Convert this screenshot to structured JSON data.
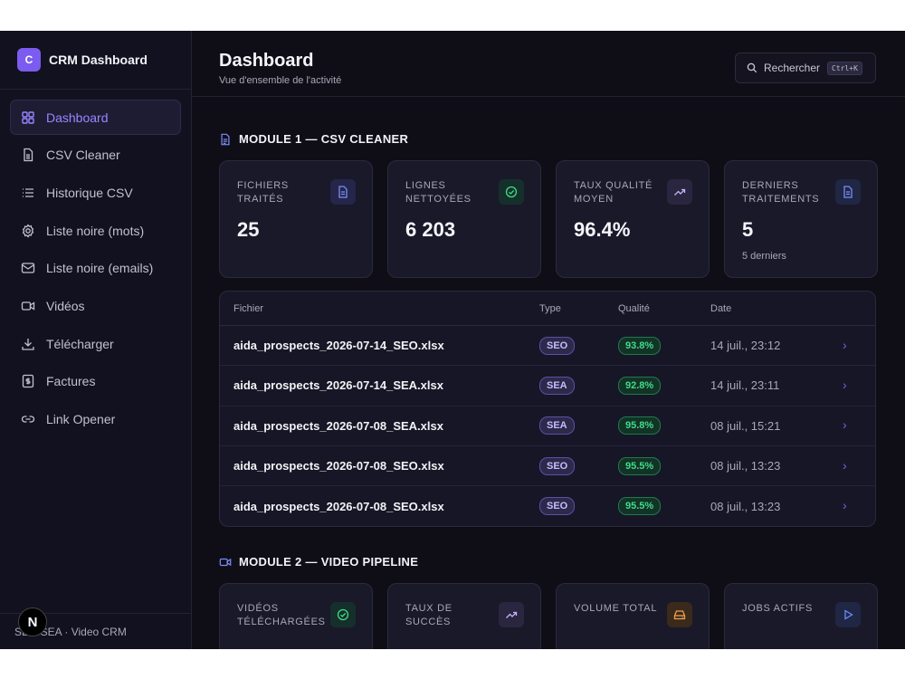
{
  "app": {
    "logo_letter": "C",
    "name": "CRM Dashboard"
  },
  "sidebar": {
    "items": [
      {
        "label": "Dashboard",
        "icon": "grid-icon",
        "active": true
      },
      {
        "label": "CSV Cleaner",
        "icon": "file-csv-icon"
      },
      {
        "label": "Historique CSV",
        "icon": "list-icon"
      },
      {
        "label": "Liste noire (mots)",
        "icon": "gear-icon"
      },
      {
        "label": "Liste noire (emails)",
        "icon": "mail-icon"
      },
      {
        "label": "Vidéos",
        "icon": "video-icon"
      },
      {
        "label": "Télécharger",
        "icon": "download-icon"
      },
      {
        "label": "Factures",
        "icon": "invoice-icon"
      },
      {
        "label": "Link Opener",
        "icon": "link-icon"
      }
    ],
    "footer": "SEO/SEA · Video CRM",
    "n_badge": "N"
  },
  "header": {
    "title": "Dashboard",
    "subtitle": "Vue d'ensemble de l'activité",
    "search_label": "Rechercher",
    "search_shortcut": "Ctrl+K"
  },
  "module1": {
    "title": "MODULE 1 — CSV CLEANER",
    "cards": [
      {
        "label": "Fichiers traités",
        "value": "25",
        "sub": "",
        "icon": "file-icon",
        "color": "#7c8cf8"
      },
      {
        "label": "Lignes nettoyées",
        "value": "6 203",
        "sub": "",
        "icon": "check-circle-icon",
        "color": "#3fdc8a"
      },
      {
        "label": "Taux qualité moyen",
        "value": "96.4%",
        "sub": "",
        "icon": "trend-up-icon",
        "color": "#a78bfa"
      },
      {
        "label": "Derniers traitements",
        "value": "5",
        "sub": "5 derniers",
        "icon": "file-icon",
        "color": "#7c8cf8"
      }
    ],
    "table": {
      "headers": {
        "file": "Fichier",
        "type": "Type",
        "quality": "Qualité",
        "date": "Date"
      },
      "rows": [
        {
          "file": "aida_prospects_2026-07-14_SEO.xlsx",
          "type": "SEO",
          "quality": "93.8%",
          "date": "14 juil., 23:12"
        },
        {
          "file": "aida_prospects_2026-07-14_SEA.xlsx",
          "type": "SEA",
          "quality": "92.8%",
          "date": "14 juil., 23:11"
        },
        {
          "file": "aida_prospects_2026-07-08_SEA.xlsx",
          "type": "SEA",
          "quality": "95.8%",
          "date": "08 juil., 15:21"
        },
        {
          "file": "aida_prospects_2026-07-08_SEO.xlsx",
          "type": "SEO",
          "quality": "95.5%",
          "date": "08 juil., 13:23"
        },
        {
          "file": "aida_prospects_2026-07-08_SEO.xlsx",
          "type": "SEO",
          "quality": "95.5%",
          "date": "08 juil., 13:23"
        }
      ]
    }
  },
  "module2": {
    "title": "MODULE 2 — VIDEO PIPELINE",
    "cards": [
      {
        "label": "Vidéos téléchargées",
        "icon": "check-circle-icon",
        "color": "#3fdc8a"
      },
      {
        "label": "Taux de succès",
        "icon": "trend-up-icon",
        "color": "#a78bfa"
      },
      {
        "label": "Volume total",
        "icon": "drive-icon",
        "color": "#f0a04b"
      },
      {
        "label": "Jobs actifs",
        "icon": "play-icon",
        "color": "#6f8cf8"
      }
    ]
  }
}
